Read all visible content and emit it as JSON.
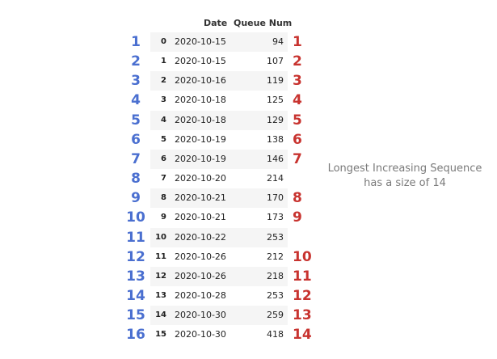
{
  "table": {
    "headers": {
      "date": "Date",
      "queue": "Queue Num"
    },
    "rows": [
      {
        "blue": "1",
        "index": "0",
        "date": "2020-10-15",
        "queue": "94",
        "red": "1"
      },
      {
        "blue": "2",
        "index": "1",
        "date": "2020-10-15",
        "queue": "107",
        "red": "2"
      },
      {
        "blue": "3",
        "index": "2",
        "date": "2020-10-16",
        "queue": "119",
        "red": "3"
      },
      {
        "blue": "4",
        "index": "3",
        "date": "2020-10-18",
        "queue": "125",
        "red": "4"
      },
      {
        "blue": "5",
        "index": "4",
        "date": "2020-10-18",
        "queue": "129",
        "red": "5"
      },
      {
        "blue": "6",
        "index": "5",
        "date": "2020-10-19",
        "queue": "138",
        "red": "6"
      },
      {
        "blue": "7",
        "index": "6",
        "date": "2020-10-19",
        "queue": "146",
        "red": "7"
      },
      {
        "blue": "8",
        "index": "7",
        "date": "2020-10-20",
        "queue": "214",
        "red": ""
      },
      {
        "blue": "9",
        "index": "8",
        "date": "2020-10-21",
        "queue": "170",
        "red": "8"
      },
      {
        "blue": "10",
        "index": "9",
        "date": "2020-10-21",
        "queue": "173",
        "red": "9"
      },
      {
        "blue": "11",
        "index": "10",
        "date": "2020-10-22",
        "queue": "253",
        "red": ""
      },
      {
        "blue": "12",
        "index": "11",
        "date": "2020-10-26",
        "queue": "212",
        "red": "10"
      },
      {
        "blue": "13",
        "index": "12",
        "date": "2020-10-26",
        "queue": "218",
        "red": "11"
      },
      {
        "blue": "14",
        "index": "13",
        "date": "2020-10-28",
        "queue": "253",
        "red": "12"
      },
      {
        "blue": "15",
        "index": "14",
        "date": "2020-10-30",
        "queue": "259",
        "red": "13"
      },
      {
        "blue": "16",
        "index": "15",
        "date": "2020-10-30",
        "queue": "418",
        "red": "14"
      }
    ]
  },
  "annotation": {
    "line1": "Longest Increasing Sequence",
    "line2": "has a size of 14"
  },
  "colors": {
    "blue_numbers": "#4a6fd0",
    "red_numbers": "#c8332f",
    "annotation_text": "#7a7a7a",
    "row_shade": "#f5f5f5"
  }
}
